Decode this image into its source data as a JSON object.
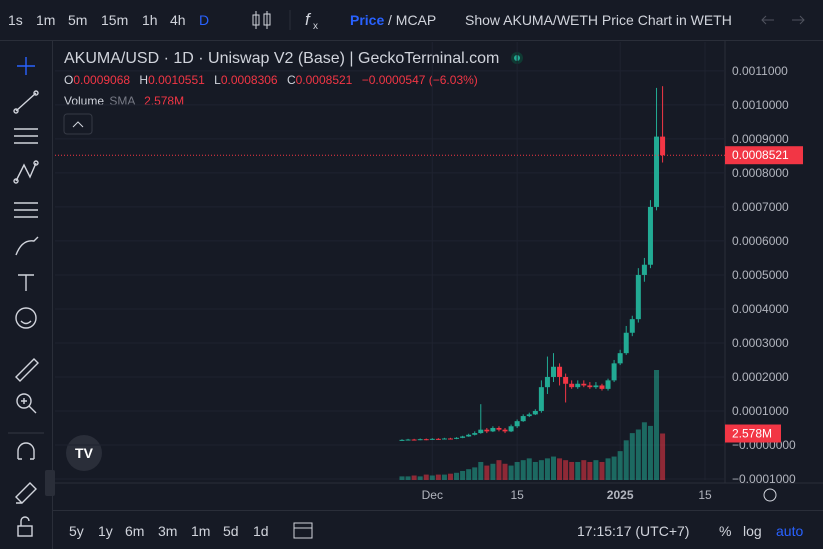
{
  "toolbar": {
    "intervals": [
      "1s",
      "1m",
      "5m",
      "15m",
      "1h",
      "4h",
      "D"
    ],
    "price": "Price",
    "separator": "/ MCAP",
    "show_chart": "Show AKUMA/WETH Price Chart in WETH"
  },
  "chart_data": {
    "type": "candlestick",
    "title": "AKUMA/USD · 1D · Uniswap V2 (Base) | GeckoTerminal.com",
    "legend": {
      "open": "O",
      "high": "H",
      "low": "L",
      "close": "C",
      "change": "−0.0000547 (−6.03%)",
      "volume": "Volume",
      "sma": "SMA",
      "volume_value": "2.578M"
    },
    "up_color": "#22ab94",
    "down_color": "#f23645",
    "categories": [
      null,
      null,
      null,
      null,
      null,
      "Dec",
      null,
      null,
      null,
      null,
      null,
      null,
      null,
      null,
      null,
      null,
      null,
      null,
      null,
      "15",
      null,
      null,
      null,
      null,
      null,
      null,
      null,
      null,
      null,
      null,
      null,
      null,
      null,
      null,
      null,
      null,
      "2025",
      null,
      null,
      null,
      null,
      null,
      null,
      null,
      null,
      null,
      null,
      null,
      null,
      null,
      "15"
    ],
    "open": [
      1.4e-05,
      1.5e-05,
      1.6e-05,
      1.5e-05,
      1.7e-05,
      1.6e-05,
      1.8e-05,
      1.7e-05,
      1.9e-05,
      1.8e-05,
      2.1e-05,
      2.5e-05,
      3e-05,
      3.5e-05,
      4.5e-05,
      4e-05,
      5e-05,
      4.5e-05,
      4e-05,
      5.5e-05,
      7e-05,
      8.5e-05,
      9e-05,
      0.0001,
      0.00017,
      0.0002,
      0.00023,
      0.0002,
      0.00018,
      0.00017,
      0.00018,
      0.000175,
      0.00017,
      0.000175,
      0.000165,
      0.00019,
      0.00024,
      0.00027,
      0.00033,
      0.00037,
      0.0005,
      0.00053,
      0.0007,
      0.0009068,
      null,
      null,
      null,
      null,
      null,
      null,
      null
    ],
    "high": [
      1.7e-05,
      1.8e-05,
      1.8e-05,
      1.9e-05,
      1.9e-05,
      2e-05,
      2e-05,
      2.1e-05,
      2.1e-05,
      2.3e-05,
      2.7e-05,
      3.3e-05,
      4e-05,
      0.00012,
      5e-05,
      5.5e-05,
      5.5e-05,
      5e-05,
      6e-05,
      7.5e-05,
      9e-05,
      9.5e-05,
      0.000105,
      0.00019,
      0.00026,
      0.00027,
      0.00024,
      0.00021,
      0.00019,
      0.00019,
      0.00019,
      0.000185,
      0.000185,
      0.00018,
      0.000195,
      0.00025,
      0.00028,
      0.00035,
      0.00038,
      0.00052,
      0.00055,
      0.00072,
      0.00105,
      0.0010551,
      null,
      null,
      null,
      null,
      null,
      null,
      null
    ],
    "low": [
      1.2e-05,
      1.3e-05,
      1.3e-05,
      1.4e-05,
      1.4e-05,
      1.5e-05,
      1.5e-05,
      1.6e-05,
      1.6e-05,
      1.7e-05,
      2e-05,
      2.4e-05,
      2.8e-05,
      3.3e-05,
      3.5e-05,
      3.8e-05,
      4e-05,
      3.5e-05,
      3.8e-05,
      5e-05,
      6.8e-05,
      8.2e-05,
      8.8e-05,
      9.5e-05,
      0.00015,
      0.000185,
      0.000175,
      0.000125,
      0.000165,
      0.000165,
      0.00017,
      0.000165,
      0.000165,
      0.00016,
      0.00016,
      0.000185,
      0.000235,
      0.000265,
      0.00032,
      0.00036,
      0.00048,
      0.00052,
      0.00069,
      0.0008306,
      null,
      null,
      null,
      null,
      null,
      null,
      null
    ],
    "close": [
      1.5e-05,
      1.6e-05,
      1.5e-05,
      1.7e-05,
      1.6e-05,
      1.8e-05,
      1.7e-05,
      1.9e-05,
      1.8e-05,
      2.1e-05,
      2.5e-05,
      3e-05,
      3.5e-05,
      4.5e-05,
      4e-05,
      5e-05,
      4.5e-05,
      4e-05,
      5.5e-05,
      7e-05,
      8.5e-05,
      9e-05,
      0.0001,
      0.00017,
      0.0002,
      0.00023,
      0.0002,
      0.00018,
      0.00017,
      0.00018,
      0.000175,
      0.00017,
      0.000175,
      0.000165,
      0.00019,
      0.00024,
      0.00027,
      0.00033,
      0.00037,
      0.0005,
      0.00053,
      0.0007,
      0.0009068,
      0.0008521,
      null,
      null,
      null,
      null,
      null,
      null,
      null
    ],
    "volume": [
      0.2,
      0.2,
      0.25,
      0.2,
      0.3,
      0.25,
      0.3,
      0.3,
      0.35,
      0.4,
      0.5,
      0.6,
      0.7,
      1.0,
      0.8,
      0.9,
      1.1,
      0.9,
      0.8,
      1.0,
      1.1,
      1.2,
      1.0,
      1.1,
      1.2,
      1.3,
      1.2,
      1.1,
      1.0,
      1.0,
      1.1,
      1.0,
      1.1,
      1.0,
      1.2,
      1.3,
      1.6,
      2.2,
      2.6,
      2.8,
      3.2,
      3.0,
      6.1,
      2.578,
      null,
      null,
      null,
      null,
      null,
      null,
      null
    ],
    "ylim": [
      -0.000103,
      0.001185
    ],
    "yticks": [
      {
        "value": 0.0011,
        "label": "0.0011000"
      },
      {
        "value": 0.001,
        "label": "0.0010000"
      },
      {
        "value": 0.0009,
        "label": "0.0009000"
      },
      {
        "value": 0.0008,
        "label": "0.0008000"
      },
      {
        "value": 0.0007,
        "label": "0.0007000"
      },
      {
        "value": 0.0006,
        "label": "0.0006000"
      },
      {
        "value": 0.0005,
        "label": "0.0005000"
      },
      {
        "value": 0.0004,
        "label": "0.0004000"
      },
      {
        "value": 0.0003,
        "label": "0.0003000"
      },
      {
        "value": 0.0002,
        "label": "0.0002000"
      },
      {
        "value": 0.0001,
        "label": "0.0001000"
      },
      {
        "value": 0,
        "label": "−0.0000000"
      },
      {
        "value": -0.0001,
        "label": "−0.0001000"
      }
    ],
    "grid": true
  },
  "bottom_bar": {
    "ranges": [
      "5y",
      "1y",
      "6m",
      "3m",
      "1m",
      "5d",
      "1d"
    ],
    "time": "17:15:17 (UTC+7)",
    "percent": "%",
    "log": "log",
    "auto": "auto"
  }
}
